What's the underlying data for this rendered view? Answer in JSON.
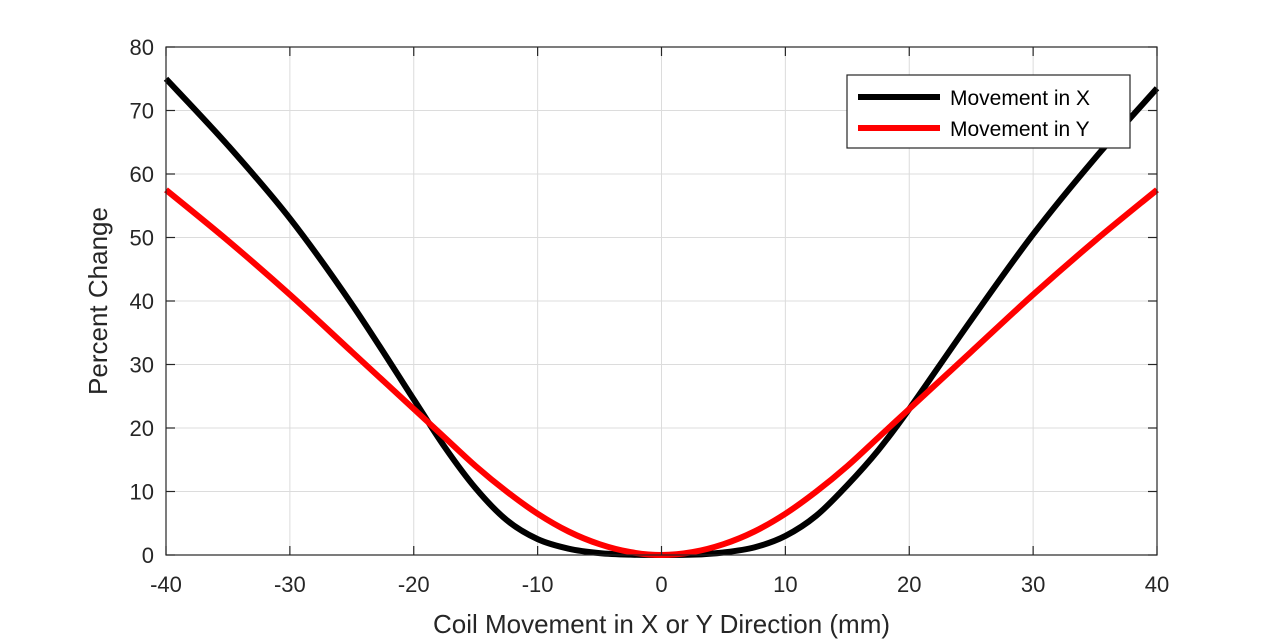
{
  "chart_data": {
    "type": "line",
    "xlabel": "Coil Movement in X or Y Direction (mm)",
    "ylabel": "Percent Change",
    "xlim": [
      -40,
      40
    ],
    "ylim": [
      0,
      80
    ],
    "xticks": [
      -40,
      -30,
      -20,
      -10,
      0,
      10,
      20,
      30,
      40
    ],
    "yticks": [
      0,
      10,
      20,
      30,
      40,
      50,
      60,
      70,
      80
    ],
    "grid": true,
    "legend_position": "top-right",
    "series": [
      {
        "name": "Movement in X",
        "color": "#000000",
        "x": [
          -40,
          -35,
          -30,
          -25,
          -20,
          -17.5,
          -15,
          -12.5,
          -10,
          -7.5,
          -5,
          -2.5,
          0,
          2.5,
          5,
          7.5,
          10,
          12.5,
          15,
          17.5,
          20,
          25,
          30,
          35,
          40
        ],
        "y": [
          75,
          64.5,
          53,
          39.5,
          24.5,
          17,
          10.5,
          5.5,
          2.5,
          1,
          0.3,
          0.05,
          0,
          0.05,
          0.4,
          1.2,
          3,
          6.2,
          11,
          16.5,
          23,
          37,
          50.5,
          62.5,
          73.5
        ]
      },
      {
        "name": "Movement in Y",
        "color": "#ff0000",
        "x": [
          -40,
          -35,
          -30,
          -25,
          -20,
          -17.5,
          -15,
          -12.5,
          -10,
          -7.5,
          -5,
          -2.5,
          0,
          2.5,
          5,
          7.5,
          10,
          12.5,
          15,
          17.5,
          20,
          25,
          30,
          35,
          40
        ],
        "y": [
          57.5,
          49.5,
          41,
          32,
          23,
          18.5,
          14,
          10,
          6.5,
          3.7,
          1.7,
          0.45,
          0,
          0.45,
          1.7,
          3.7,
          6.5,
          10,
          14,
          18.5,
          23,
          32,
          41,
          49.5,
          57.5
        ]
      }
    ]
  }
}
